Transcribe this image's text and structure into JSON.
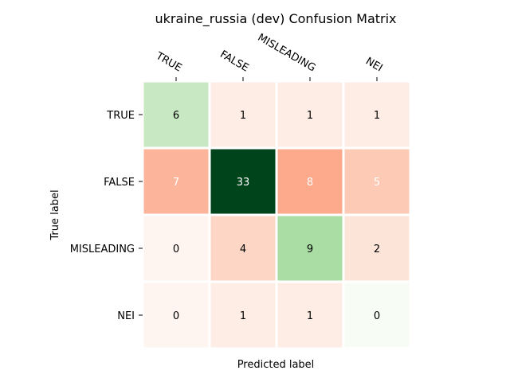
{
  "chart_data": {
    "type": "heatmap",
    "title": "ukraine_russia (dev) Confusion Matrix",
    "xlabel": "Predicted label",
    "ylabel": "True label",
    "x_categories": [
      "TRUE",
      "FALSE",
      "MISLEADING",
      "NEI"
    ],
    "y_categories": [
      "TRUE",
      "FALSE",
      "MISLEADING",
      "NEI"
    ],
    "values": [
      [
        6,
        1,
        1,
        1
      ],
      [
        7,
        33,
        8,
        5
      ],
      [
        0,
        4,
        9,
        2
      ],
      [
        0,
        1,
        1,
        0
      ]
    ],
    "cell_colors": [
      [
        "#c8e8c3",
        "#fdede5",
        "#fdede5",
        "#fdede5"
      ],
      [
        "#fcb59a",
        "#00441b",
        "#fca98c",
        "#fccab5"
      ],
      [
        "#fff5f0",
        "#fdd6c6",
        "#aadda4",
        "#fde4d9"
      ],
      [
        "#fff5f0",
        "#fdede5",
        "#fdede5",
        "#f7fcf5"
      ]
    ],
    "text_colors": [
      [
        "#000000",
        "#000000",
        "#000000",
        "#000000"
      ],
      [
        "#ffffff",
        "#ffffff",
        "#ffffff",
        "#ffffff"
      ],
      [
        "#000000",
        "#000000",
        "#000000",
        "#000000"
      ],
      [
        "#000000",
        "#000000",
        "#000000",
        "#000000"
      ]
    ],
    "grid": false
  }
}
